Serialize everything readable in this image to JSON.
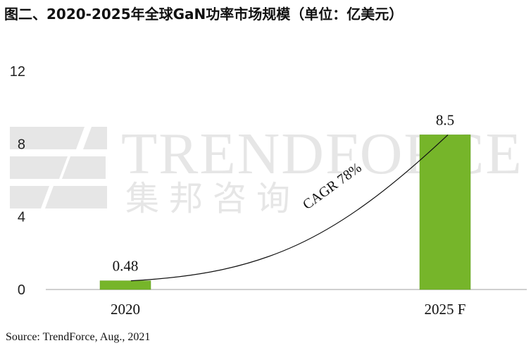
{
  "title": "图二、2020-2025年全球GaN功率市场规模（单位：亿美元）",
  "source": "Source: TrendForce, Aug., 2021",
  "watermark": {
    "brand": "TRENDFORCE",
    "brand_cn": "集邦咨询"
  },
  "colors": {
    "bar": "#76b52a",
    "bar_edge": "#5e9a1c",
    "axis": "#bfbfbf",
    "watermark": "#e6e6e6"
  },
  "chart_data": {
    "type": "bar",
    "title": "图二、2020-2025年全球GaN功率市场规模（单位：亿美元）",
    "categories": [
      "2020",
      "2025 F"
    ],
    "values": [
      0.48,
      8.5
    ],
    "data_labels": [
      "0.48",
      "8.5"
    ],
    "ylim": [
      0,
      12
    ],
    "yticks": [
      0,
      4,
      8,
      12
    ],
    "xlabel": "",
    "ylabel": "",
    "grid": false,
    "annotation": "CAGR 78%"
  }
}
